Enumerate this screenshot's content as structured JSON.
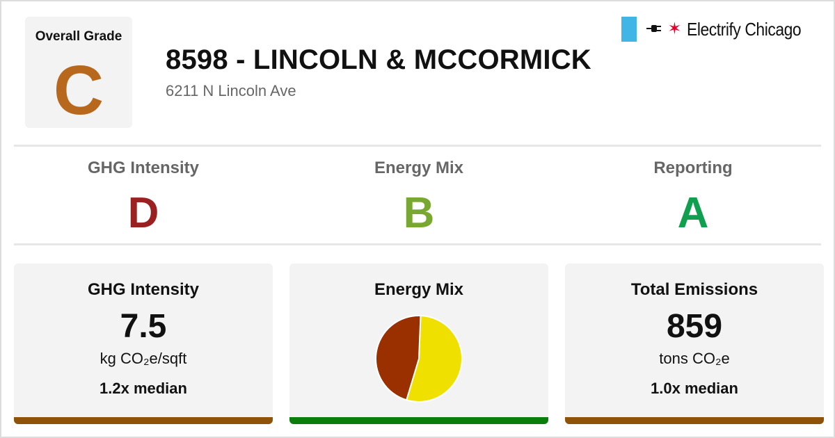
{
  "overall": {
    "label": "Overall Grade",
    "grade": "C",
    "color": "#b8681c"
  },
  "building": {
    "title": "8598 - LINCOLN & MCCORMICK",
    "address": "6211 N Lincoln Ave"
  },
  "brand": {
    "name": "Electrify Chicago",
    "flag_color": "#41b6e6",
    "star_color": "#e4002b",
    "icons": [
      "flag-icon",
      "plug-icon",
      "star-icon"
    ]
  },
  "subgrades": [
    {
      "label": "GHG Intensity",
      "grade": "D",
      "color": "#9b2020"
    },
    {
      "label": "Energy Mix",
      "grade": "B",
      "color": "#79a832"
    },
    {
      "label": "Reporting",
      "grade": "A",
      "color": "#0f9f4f"
    }
  ],
  "cards": {
    "ghg": {
      "title": "GHG Intensity",
      "value": "7.5",
      "unit": "kg CO₂e/sqft",
      "median": "1.2x median",
      "bar_color": "#8f5209"
    },
    "mix": {
      "title": "Energy Mix",
      "bar_color": "#0a7d0a",
      "chart_data": {
        "type": "pie",
        "slices": [
          {
            "value": 0.54,
            "color": "#f0e000"
          },
          {
            "value": 0.46,
            "color": "#9a3000"
          }
        ]
      }
    },
    "total": {
      "title": "Total Emissions",
      "value": "859",
      "unit": "tons CO₂e",
      "median": "1.0x median",
      "bar_color": "#8f5209"
    }
  }
}
